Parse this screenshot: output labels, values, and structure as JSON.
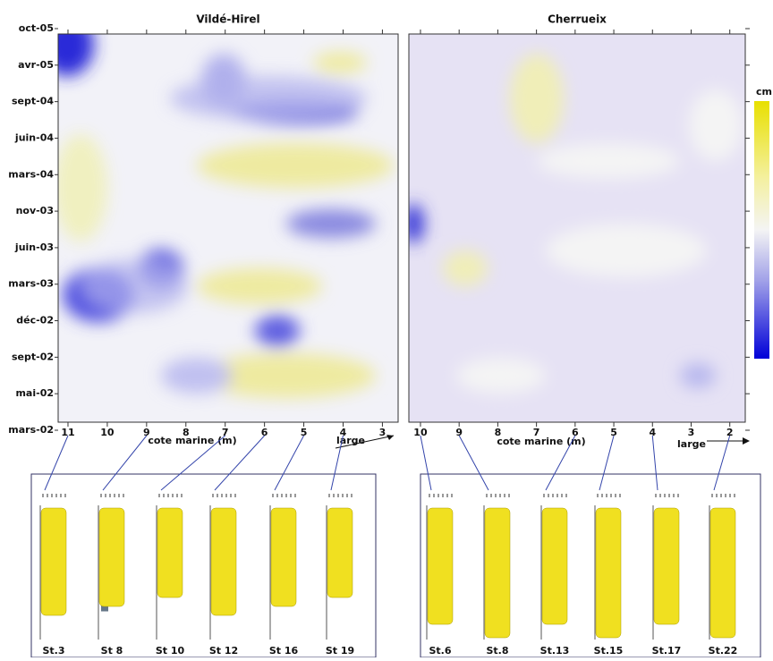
{
  "chart_data": [
    {
      "type": "contour",
      "title": "Vildé-Hirel",
      "categories": [
        "oct-05",
        "avr-05",
        "sept-04",
        "juin-04",
        "mars-04",
        "nov-03",
        "juin-03",
        "mars-03",
        "déc-02",
        "sept-02",
        "mai-02",
        "mars-02"
      ],
      "xlabel": "cote marine (m)",
      "annotation": "large",
      "xlim": [
        11.25,
        2.6
      ],
      "xticks": [
        11,
        10,
        9,
        8,
        7,
        6,
        5,
        4,
        3
      ]
    },
    {
      "type": "contour",
      "title": "Cherrueix",
      "xlabel": "cote marine (m)",
      "annotation": "large",
      "xlim": [
        10.3,
        1.6
      ],
      "xticks": [
        10,
        9,
        8,
        7,
        6,
        5,
        4,
        3,
        2
      ],
      "colorbar_label": "cm"
    }
  ],
  "cores": {
    "left": [
      "St.3",
      "St 8",
      "St 10",
      "St 12",
      "St 16",
      "St 19"
    ],
    "right": [
      "St.6",
      "St.8",
      "St.13",
      "St.15",
      "St.17",
      "St.22"
    ]
  }
}
